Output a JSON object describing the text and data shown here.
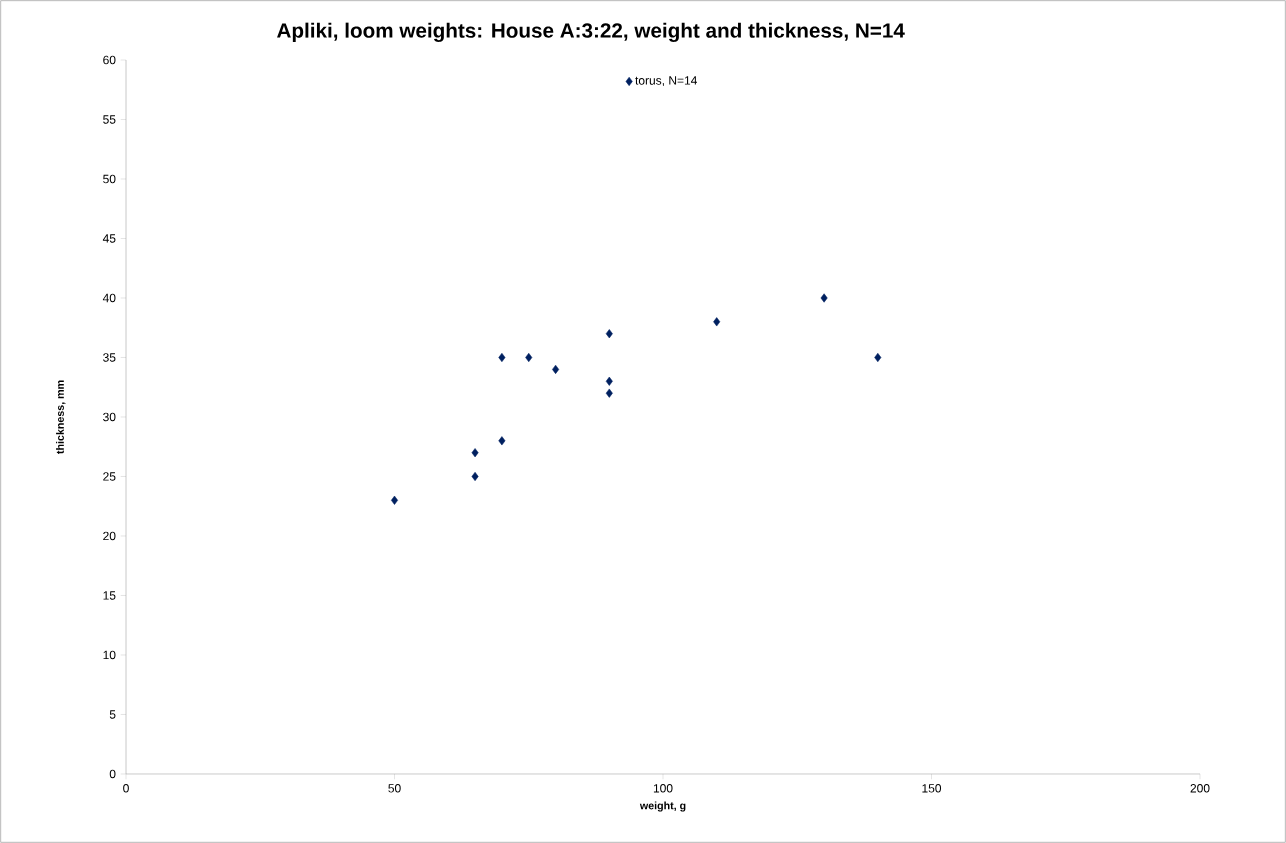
{
  "chart_data": {
    "type": "scatter",
    "title": "Apliki, loom weights: House A:3:22, weight and thickness, N=14",
    "xlabel": "weight, g",
    "ylabel": "thickness, mm",
    "series": [
      {
        "name": "torus, N=14",
        "color": "#002060",
        "x": [
          50,
          65,
          65,
          70,
          70,
          75,
          80,
          90,
          90,
          90,
          110,
          130,
          140
        ],
        "values": [
          23,
          25,
          27,
          28,
          35,
          35,
          34,
          37,
          33,
          32,
          38,
          40,
          35
        ]
      }
    ],
    "xlim": [
      0,
      200
    ],
    "xticks": [
      0,
      50,
      100,
      150,
      200
    ],
    "ylim": [
      0,
      60
    ],
    "yticks": [
      0,
      5,
      10,
      15,
      20,
      25,
      30,
      35,
      40,
      45,
      50,
      55,
      60
    ],
    "grid": false,
    "legend": "top",
    "marker": "diamond"
  }
}
